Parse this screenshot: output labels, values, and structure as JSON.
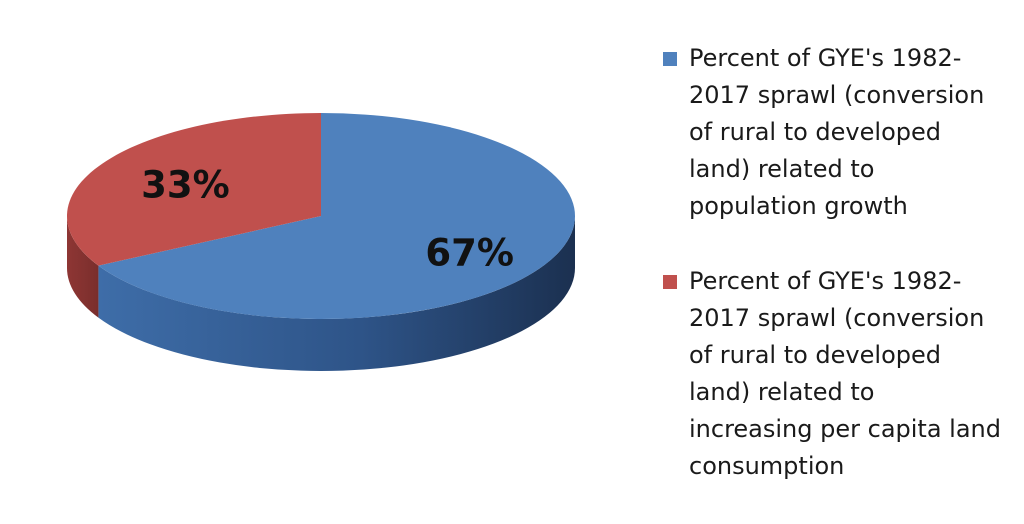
{
  "chart_data": {
    "type": "pie",
    "three_d": true,
    "slices": [
      {
        "label": "Percent of GYE's 1982-2017 sprawl (conversion of rural to developed land) related to population growth",
        "value": 67,
        "value_label": "67%",
        "color": "#4F81BD",
        "side_color_dark": "#1F3A5F",
        "side_color_light": "#3E6DA8"
      },
      {
        "label": "Percent of GYE's 1982-2017 sprawl (conversion of rural to developed land) related to increasing per capita land consumption",
        "value": 33,
        "value_label": "33%",
        "color": "#C0504D",
        "side_color_dark": "#7A2E2C",
        "side_color_light": "#A03F3C"
      }
    ],
    "legend_position": "right"
  }
}
